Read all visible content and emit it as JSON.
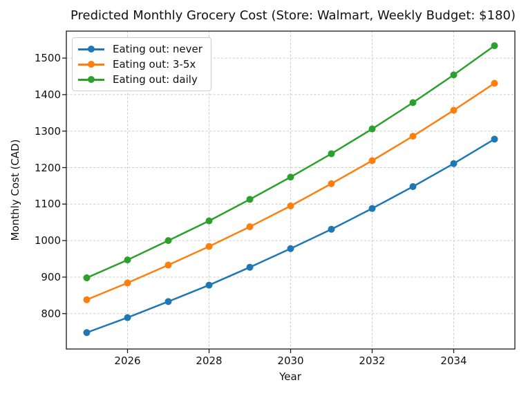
{
  "title": "Predicted Monthly Grocery Cost (Store: Walmart, Weekly Budget: $180)",
  "chart_data": {
    "type": "line",
    "title": "Predicted Monthly Grocery Cost (Store: Walmart, Weekly Budget: $180)",
    "xlabel": "Year",
    "ylabel": "Monthly Cost (CAD)",
    "x": [
      2025,
      2026,
      2027,
      2028,
      2029,
      2030,
      2031,
      2032,
      2033,
      2034,
      2035
    ],
    "series": [
      {
        "name": "Eating out: never",
        "color": "#1f77b4",
        "values": [
          748,
          789,
          833,
          878,
          927,
          978,
          1031,
          1088,
          1148,
          1211,
          1278
        ]
      },
      {
        "name": "Eating out: 3-5x",
        "color": "#ff7f0e",
        "values": [
          838,
          884,
          933,
          984,
          1038,
          1095,
          1156,
          1219,
          1286,
          1357,
          1431
        ]
      },
      {
        "name": "Eating out: daily",
        "color": "#2ca02c",
        "values": [
          898,
          947,
          1000,
          1054,
          1113,
          1174,
          1238,
          1306,
          1378,
          1454,
          1534
        ]
      }
    ],
    "xticks": [
      2026,
      2028,
      2030,
      2032,
      2034
    ],
    "yticks": [
      800,
      900,
      1000,
      1100,
      1200,
      1300,
      1400,
      1500
    ],
    "xlim": [
      2024.5,
      2035.5
    ],
    "ylim": [
      703,
      1574
    ],
    "grid": true,
    "grid_style": "dashed",
    "grid_color": "#cbcbcb",
    "spine_color": "#1a1a1a",
    "legend_position": "upper-left",
    "marker": "circle",
    "marker_size": 10,
    "line_width": 2.5
  }
}
